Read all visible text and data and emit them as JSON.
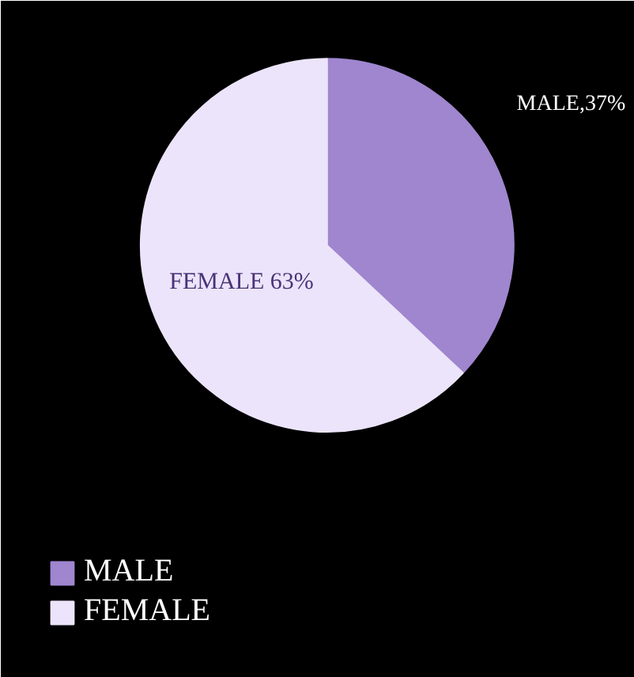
{
  "chart_data": {
    "type": "pie",
    "categories": [
      "MALE",
      "FEMALE"
    ],
    "values": [
      37,
      63
    ],
    "colors": [
      "#9f86cf",
      "#ece4fa"
    ],
    "value_labels": [
      "MALE,37%",
      "FEMALE 63%"
    ],
    "legend": "bottom left"
  }
}
